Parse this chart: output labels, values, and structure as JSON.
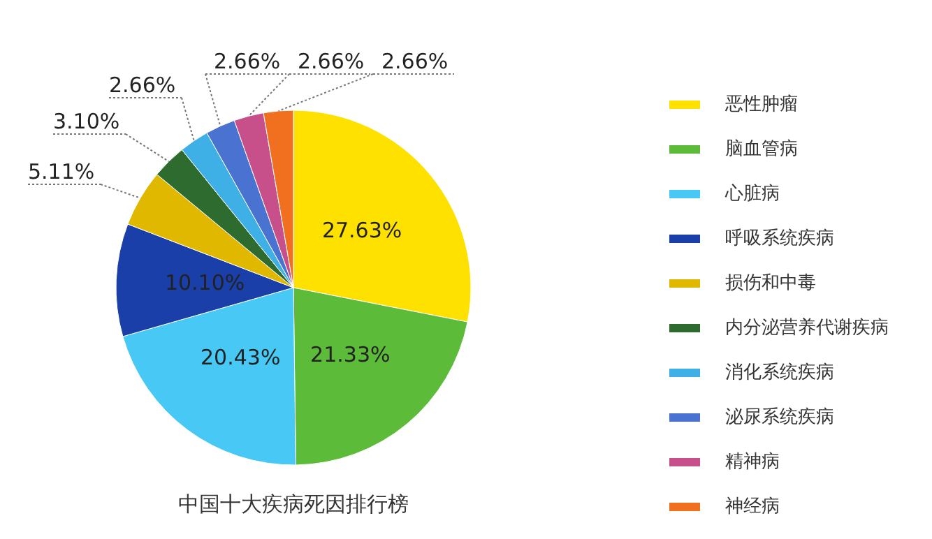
{
  "chart_data": {
    "type": "pie",
    "title": "中国十大疾病死因排行榜",
    "categories": [
      "恶性肿瘤",
      "脑血管病",
      "心脏病",
      "呼吸系统疾病",
      "损伤和中毒",
      "内分泌营养代谢疾病",
      "消化系统疾病",
      "泌尿系统疾病",
      "精神病",
      "神经病"
    ],
    "values": [
      27.63,
      21.33,
      20.43,
      10.1,
      5.11,
      3.1,
      2.66,
      2.66,
      2.66,
      2.66
    ],
    "value_labels": [
      "27.63%",
      "21.33%",
      "20.43%",
      "10.10%",
      "5.11%",
      "3.10%",
      "2.66%",
      "2.66%",
      "2.66%",
      "2.66%"
    ],
    "colors": [
      "#ffe100",
      "#5dbb3a",
      "#47c8f5",
      "#1a3fa8",
      "#e0b800",
      "#2e6b2e",
      "#3fb0e6",
      "#4a72d0",
      "#c8508a",
      "#f07020"
    ],
    "legend": "right"
  }
}
